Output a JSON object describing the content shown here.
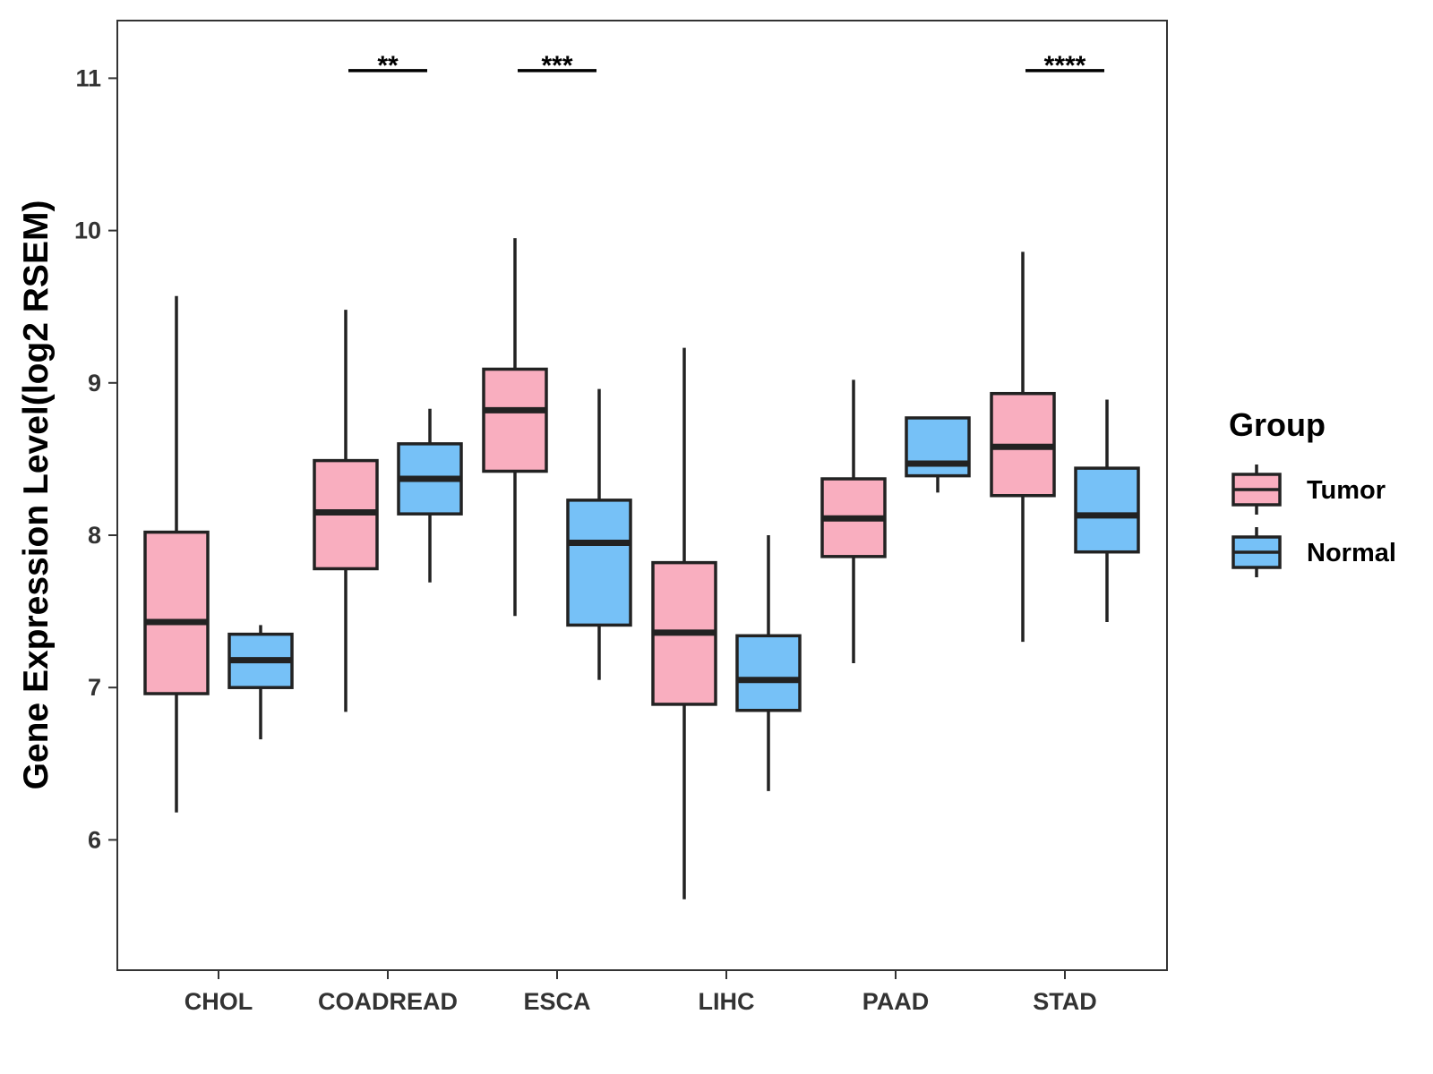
{
  "chart_data": {
    "type": "boxplot",
    "ylabel": "Gene Expression Level(log2 RSEM)",
    "xlabel": "",
    "ylim": [
      5.1,
      11.35
    ],
    "yticks": [
      6,
      7,
      8,
      9,
      10,
      11
    ],
    "ytick_labels": [
      "6",
      "7",
      "8",
      "9",
      "10",
      "11"
    ],
    "categories": [
      "CHOL",
      "COADREAD",
      "ESCA",
      "LIHC",
      "PAAD",
      "STAD"
    ],
    "legend": {
      "title": "Group",
      "position": "right",
      "entries": [
        {
          "name": "Tumor",
          "color": "#F9AEBF"
        },
        {
          "name": "Normal",
          "color": "#76C1F7"
        }
      ]
    },
    "series": [
      {
        "name": "Tumor",
        "color": "#F9AEBF",
        "boxes": [
          {
            "min": 6.18,
            "q1": 6.96,
            "median": 7.43,
            "q3": 8.02,
            "max": 9.57
          },
          {
            "min": 6.84,
            "q1": 7.78,
            "median": 8.15,
            "q3": 8.49,
            "max": 9.48
          },
          {
            "min": 7.47,
            "q1": 8.42,
            "median": 8.82,
            "q3": 9.09,
            "max": 9.95
          },
          {
            "min": 5.61,
            "q1": 6.89,
            "median": 7.36,
            "q3": 7.82,
            "max": 9.23
          },
          {
            "min": 7.16,
            "q1": 7.86,
            "median": 8.11,
            "q3": 8.37,
            "max": 9.02
          },
          {
            "min": 7.3,
            "q1": 8.26,
            "median": 8.58,
            "q3": 8.93,
            "max": 9.86
          }
        ]
      },
      {
        "name": "Normal",
        "color": "#76C1F7",
        "boxes": [
          {
            "min": 6.66,
            "q1": 7.0,
            "median": 7.18,
            "q3": 7.35,
            "max": 7.41
          },
          {
            "min": 7.69,
            "q1": 8.14,
            "median": 8.37,
            "q3": 8.6,
            "max": 8.83
          },
          {
            "min": 7.05,
            "q1": 7.41,
            "median": 7.95,
            "q3": 8.23,
            "max": 8.96
          },
          {
            "min": 6.32,
            "q1": 6.85,
            "median": 7.05,
            "q3": 7.34,
            "max": 8.0
          },
          {
            "min": 8.28,
            "q1": 8.39,
            "median": 8.47,
            "q3": 8.77,
            "max": 8.77
          },
          {
            "min": 7.43,
            "q1": 7.89,
            "median": 8.13,
            "q3": 8.44,
            "max": 8.89
          }
        ]
      }
    ],
    "significance": [
      {
        "category": "COADREAD",
        "label": "**",
        "y": 11.05
      },
      {
        "category": "ESCA",
        "label": "***",
        "y": 11.05
      },
      {
        "category": "STAD",
        "label": "****",
        "y": 11.05
      }
    ]
  }
}
